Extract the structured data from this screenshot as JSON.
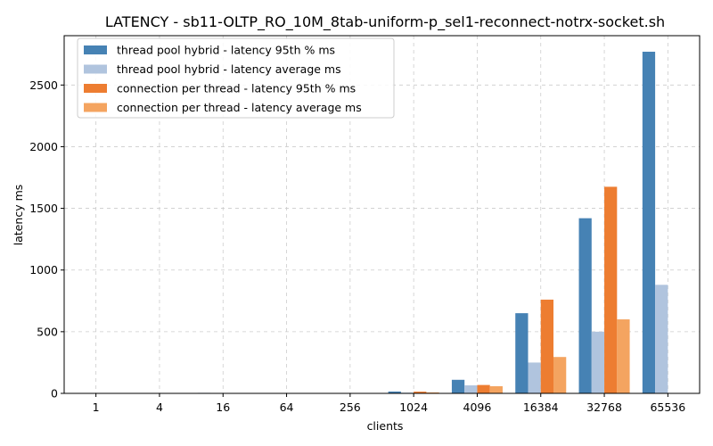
{
  "chart_data": {
    "type": "bar",
    "title": "LATENCY - sb11-OLTP_RO_10M_8tab-uniform-p_sel1-reconnect-notrx-socket.sh",
    "xlabel": "clients",
    "ylabel": "latency ms",
    "categories": [
      "1",
      "4",
      "16",
      "64",
      "256",
      "1024",
      "4096",
      "16384",
      "32768",
      "65536"
    ],
    "ylim": [
      0,
      2900
    ],
    "yticks": [
      0,
      500,
      1000,
      1500,
      2000,
      2500
    ],
    "grid": true,
    "legend_position": "top-left",
    "series": [
      {
        "name": "thread pool hybrid - latency 95th % ms",
        "color": "#4682b4",
        "values": [
          1,
          1,
          4,
          1,
          3,
          15,
          110,
          650,
          1420,
          2770
        ]
      },
      {
        "name": "thread pool hybrid - latency average ms",
        "color": "#b0c4de",
        "values": [
          0.5,
          0.5,
          1.5,
          0.5,
          1,
          6,
          65,
          250,
          500,
          880
        ]
      },
      {
        "name": "connection per thread - latency 95th % ms",
        "color": "#ed7d31",
        "values": [
          1,
          1,
          1,
          1,
          3,
          14,
          68,
          760,
          1675,
          0
        ]
      },
      {
        "name": "connection per thread - latency average ms",
        "color": "#f4a460",
        "values": [
          0.5,
          0.5,
          0.5,
          0.5,
          2,
          8,
          58,
          295,
          600,
          0
        ]
      }
    ]
  }
}
